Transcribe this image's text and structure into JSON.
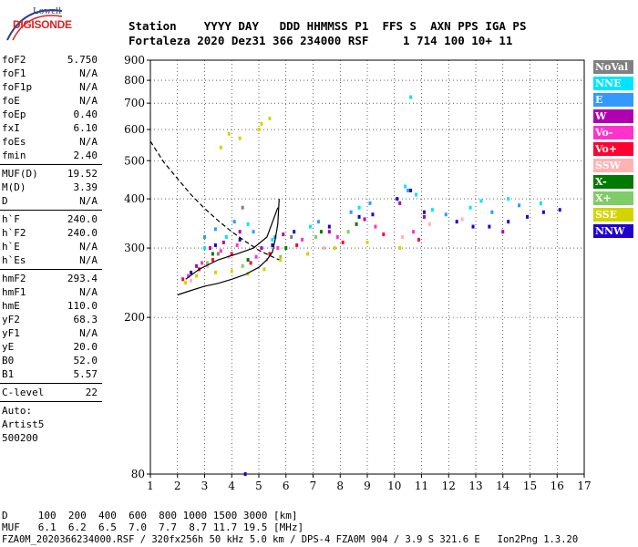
{
  "logo": {
    "line1": "Lowell",
    "line2": "DIGISONDE"
  },
  "header": {
    "row1": "Station    YYYY DAY   DDD HHMMSS P1  FFS S  AXN PPS IGA PS",
    "row2": "Fortaleza 2020 Dez31 366 234000 RSF     1 714 100 10+ 11"
  },
  "params": {
    "group1": [
      [
        "foF2",
        "5.750"
      ],
      [
        "foF1",
        "N/A"
      ],
      [
        "foF1p",
        "N/A"
      ],
      [
        "foE",
        "N/A"
      ],
      [
        "foEp",
        "0.40"
      ],
      [
        "fxI",
        "6.10"
      ],
      [
        "foEs",
        "N/A"
      ],
      [
        "fmin",
        "2.40"
      ]
    ],
    "group2": [
      [
        "MUF(D)",
        "19.52"
      ],
      [
        "M(D)",
        "3.39"
      ],
      [
        "D",
        "N/A"
      ]
    ],
    "group3": [
      [
        "h`F",
        "240.0"
      ],
      [
        "h`F2",
        "240.0"
      ],
      [
        "h`E",
        "N/A"
      ],
      [
        "h`Es",
        "N/A"
      ]
    ],
    "group4": [
      [
        "hmF2",
        "293.4"
      ],
      [
        "hmF1",
        "N/A"
      ],
      [
        "hmE",
        "110.0"
      ],
      [
        "yF2",
        "68.3"
      ],
      [
        "yF1",
        "N/A"
      ],
      [
        "yE",
        "20.0"
      ],
      [
        "B0",
        "52.0"
      ],
      [
        "B1",
        "5.57"
      ]
    ],
    "group5": [
      [
        "C-level",
        "22"
      ]
    ],
    "misc": [
      "Auto:",
      "Artist5",
      "500200"
    ]
  },
  "legend": [
    {
      "label": "NoVal",
      "color": "#808080"
    },
    {
      "label": "NNE",
      "color": "#00e5ff"
    },
    {
      "label": "E",
      "color": "#3399ff"
    },
    {
      "label": "W",
      "color": "#b000b0"
    },
    {
      "label": "Vo-",
      "color": "#ff33cc"
    },
    {
      "label": "Vo+",
      "color": "#ff0033"
    },
    {
      "label": "SSW",
      "color": "#ffb3b3"
    },
    {
      "label": "X-",
      "color": "#007a00"
    },
    {
      "label": "X+",
      "color": "#80cc66"
    },
    {
      "label": "SSE",
      "color": "#d4d400"
    },
    {
      "label": "NNW",
      "color": "#2200cc"
    }
  ],
  "footer": {
    "d_row": "D     100  200  400  600  800 1000 1500 3000 [km]",
    "muf_row": "MUF   6.1  6.2  6.5  7.0  7.7  8.7 11.7 19.5 [MHz]",
    "file_row": "FZA0M_2020366234000.RSF / 320fx256h 50 kHz 5.0 km / DPS-4 FZA0M 904 / 3.9 S 321.6 E   Ion2Png 1.3.20"
  },
  "chart_data": {
    "type": "scatter",
    "title": "",
    "xlabel": "",
    "ylabel": "",
    "xlim": [
      1,
      17
    ],
    "ylim": [
      80,
      900
    ],
    "yscale": "log",
    "x_ticks": [
      1,
      2,
      3,
      4,
      5,
      6,
      7,
      8,
      9,
      10,
      11,
      12,
      13,
      14,
      15,
      16,
      17
    ],
    "y_ticks": [
      80,
      200,
      300,
      400,
      500,
      600,
      700,
      800,
      900
    ],
    "grid": true,
    "legend_position": "right",
    "series": [
      {
        "name": "NoVal",
        "color": "#808080",
        "points": [
          [
            3.5,
            290
          ],
          [
            4.4,
            380
          ],
          [
            6.2,
            320
          ]
        ]
      },
      {
        "name": "NNE",
        "color": "#00e5ff",
        "points": [
          [
            3.0,
            300
          ],
          [
            3.8,
            320
          ],
          [
            4.6,
            345
          ],
          [
            5.5,
            315
          ],
          [
            6.9,
            340
          ],
          [
            8.7,
            380
          ],
          [
            10.4,
            430
          ],
          [
            10.8,
            410
          ],
          [
            11.4,
            375
          ],
          [
            12.8,
            380
          ],
          [
            13.2,
            395
          ],
          [
            14.2,
            400
          ],
          [
            15.4,
            390
          ],
          [
            10.6,
            725
          ]
        ]
      },
      {
        "name": "E",
        "color": "#3399ff",
        "points": [
          [
            3.0,
            320
          ],
          [
            3.4,
            335
          ],
          [
            4.1,
            350
          ],
          [
            4.8,
            330
          ],
          [
            5.6,
            320
          ],
          [
            7.2,
            350
          ],
          [
            8.4,
            370
          ],
          [
            9.1,
            390
          ],
          [
            10.5,
            420
          ],
          [
            11.9,
            365
          ],
          [
            13.6,
            370
          ],
          [
            14.6,
            385
          ]
        ]
      },
      {
        "name": "W",
        "color": "#b000b0",
        "points": [
          [
            2.7,
            270
          ],
          [
            3.2,
            300
          ],
          [
            3.7,
            310
          ],
          [
            4.3,
            330
          ],
          [
            5.1,
            300
          ],
          [
            5.9,
            325
          ],
          [
            7.6,
            330
          ],
          [
            8.9,
            355
          ],
          [
            10.2,
            390
          ],
          [
            11.1,
            360
          ],
          [
            14.0,
            330
          ]
        ]
      },
      {
        "name": "Vo-",
        "color": "#ff33cc",
        "points": [
          [
            2.4,
            255
          ],
          [
            2.9,
            275
          ],
          [
            3.6,
            295
          ],
          [
            4.2,
            305
          ],
          [
            4.9,
            285
          ],
          [
            5.7,
            300
          ],
          [
            6.6,
            315
          ],
          [
            7.9,
            320
          ],
          [
            9.3,
            340
          ],
          [
            10.7,
            330
          ]
        ]
      },
      {
        "name": "Vo+",
        "color": "#ff0033",
        "points": [
          [
            2.2,
            250
          ],
          [
            2.8,
            265
          ],
          [
            3.3,
            280
          ],
          [
            4.0,
            290
          ],
          [
            4.7,
            275
          ],
          [
            5.4,
            290
          ],
          [
            6.4,
            305
          ],
          [
            8.1,
            310
          ],
          [
            9.6,
            325
          ],
          [
            10.9,
            315
          ]
        ]
      },
      {
        "name": "SSW",
        "color": "#ffb3b3",
        "points": [
          [
            2.5,
            248
          ],
          [
            3.1,
            270
          ],
          [
            3.9,
            285
          ],
          [
            5.3,
            280
          ],
          [
            7.4,
            300
          ],
          [
            10.3,
            320
          ],
          [
            11.3,
            345
          ],
          [
            12.5,
            355
          ]
        ]
      },
      {
        "name": "X-",
        "color": "#007a00",
        "points": [
          [
            3.3,
            290
          ],
          [
            4.6,
            280
          ],
          [
            6.0,
            300
          ],
          [
            7.3,
            330
          ],
          [
            8.6,
            345
          ]
        ]
      },
      {
        "name": "X+",
        "color": "#80cc66",
        "points": [
          [
            3.1,
            275
          ],
          [
            4.4,
            270
          ],
          [
            5.8,
            285
          ],
          [
            7.1,
            320
          ],
          [
            8.3,
            330
          ]
        ]
      },
      {
        "name": "SSE",
        "color": "#d4d400",
        "points": [
          [
            2.3,
            245
          ],
          [
            2.7,
            255
          ],
          [
            3.4,
            260
          ],
          [
            4.0,
            262
          ],
          [
            4.6,
            258
          ],
          [
            5.2,
            265
          ],
          [
            5.8,
            280
          ],
          [
            6.8,
            290
          ],
          [
            7.8,
            300
          ],
          [
            9.0,
            310
          ],
          [
            10.2,
            300
          ],
          [
            3.6,
            540
          ],
          [
            4.3,
            570
          ],
          [
            5.1,
            620
          ],
          [
            5.4,
            640
          ],
          [
            3.9,
            585
          ],
          [
            5.0,
            600
          ]
        ]
      },
      {
        "name": "NNW",
        "color": "#2200cc",
        "points": [
          [
            2.5,
            260
          ],
          [
            3.4,
            305
          ],
          [
            4.3,
            315
          ],
          [
            5.5,
            305
          ],
          [
            6.3,
            330
          ],
          [
            7.6,
            340
          ],
          [
            8.7,
            360
          ],
          [
            9.2,
            365
          ],
          [
            10.1,
            400
          ],
          [
            10.6,
            420
          ],
          [
            11.1,
            370
          ],
          [
            12.3,
            350
          ],
          [
            12.9,
            340
          ],
          [
            13.5,
            340
          ],
          [
            14.2,
            350
          ],
          [
            14.9,
            360
          ],
          [
            15.5,
            370
          ],
          [
            16.1,
            375
          ],
          [
            4.5,
            80
          ]
        ]
      }
    ],
    "profile_curve": [
      [
        2.0,
        228
      ],
      [
        2.4,
        233
      ],
      [
        3.0,
        240
      ],
      [
        3.5,
        244
      ],
      [
        4.0,
        250
      ],
      [
        4.5,
        257
      ],
      [
        5.0,
        268
      ],
      [
        5.3,
        280
      ],
      [
        5.5,
        293
      ],
      [
        5.6,
        315
      ],
      [
        5.7,
        345
      ],
      [
        5.75,
        400
      ]
    ],
    "trace_curve": [
      [
        2.3,
        250
      ],
      [
        2.8,
        265
      ],
      [
        3.5,
        280
      ],
      [
        4.2,
        290
      ],
      [
        4.8,
        300
      ],
      [
        5.3,
        320
      ],
      [
        5.7,
        380
      ]
    ],
    "muf_curve": [
      [
        1.0,
        560
      ],
      [
        1.5,
        495
      ],
      [
        2.0,
        450
      ],
      [
        2.5,
        410
      ],
      [
        3.0,
        378
      ],
      [
        3.5,
        352
      ],
      [
        4.0,
        330
      ],
      [
        4.5,
        312
      ],
      [
        5.0,
        296
      ],
      [
        5.5,
        285
      ],
      [
        5.75,
        280
      ]
    ]
  }
}
